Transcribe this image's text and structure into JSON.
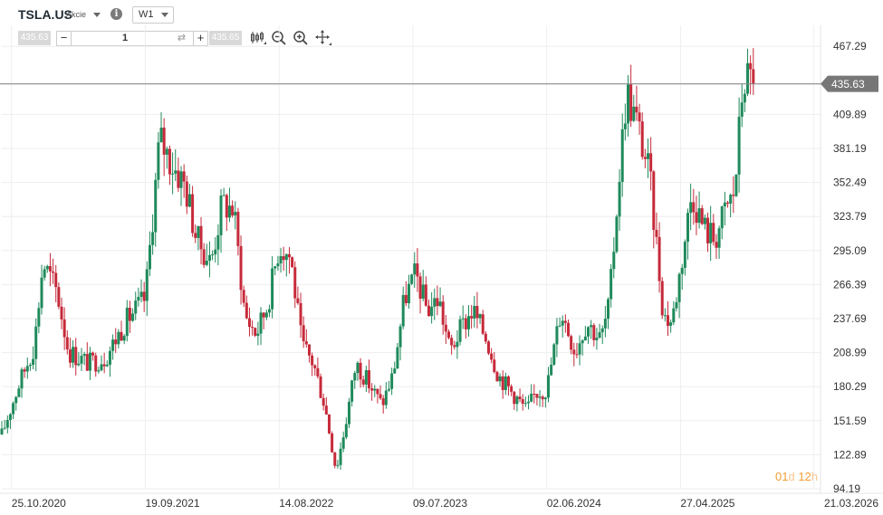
{
  "header": {
    "symbol": "TSLA.US",
    "asset_type": "Akcie",
    "timeframe": "W1"
  },
  "trade_bar": {
    "sell_price": "435.63",
    "quantity": "1",
    "buy_price": "435.65"
  },
  "toolbar": {
    "icons": [
      "candlestick-type-icon",
      "zoom-out-icon",
      "zoom-in-icon",
      "move-icon"
    ]
  },
  "countdown": {
    "days": "01",
    "d_unit": "d",
    "hours": "12",
    "h_unit": "h"
  },
  "colors": {
    "up": "#1f8a5b",
    "down": "#c62a3a",
    "price_line": "#8a8a8a",
    "countdown": "#f39c34"
  },
  "chart_data": {
    "type": "candlestick",
    "title": "",
    "interval": "W1",
    "current_price": 435.63,
    "y_ticks": [
      467.29,
      409.89,
      381.19,
      352.49,
      323.79,
      295.09,
      266.39,
      237.69,
      208.99,
      180.29,
      151.59,
      122.89,
      94.19
    ],
    "y_tick_labels": [
      "467.29",
      "409.89",
      "381.19",
      "352.49",
      "323.79",
      "295.09",
      "266.39",
      "237.69",
      "208.99",
      "180.29",
      "151.59",
      "122.89",
      "94.19"
    ],
    "ylim": [
      94.19,
      485
    ],
    "x_tick_labels": [
      "25.10.2020",
      "19.09.2021",
      "14.08.2022",
      "09.07.2023",
      "02.06.2024",
      "27.04.2025",
      "21.03.2026"
    ],
    "x_ticks": [
      "2020-10-25",
      "2021-09-19",
      "2022-08-14",
      "2023-07-09",
      "2024-06-02",
      "2025-04-27",
      "2026-03-21"
    ],
    "x_range": [
      "2020-10-01",
      "2026-04-04"
    ],
    "close_path": [
      [
        "2020-10-01",
        140
      ],
      [
        "2020-11-15",
        185
      ],
      [
        "2020-12-20",
        215
      ],
      [
        "2021-01-10",
        285
      ],
      [
        "2021-02-14",
        260
      ],
      [
        "2021-03-14",
        210
      ],
      [
        "2021-05-02",
        200
      ],
      [
        "2021-06-13",
        205
      ],
      [
        "2021-08-01",
        235
      ],
      [
        "2021-09-19",
        255
      ],
      [
        "2021-10-24",
        390
      ],
      [
        "2021-11-21",
        370
      ],
      [
        "2021-12-26",
        350
      ],
      [
        "2022-01-23",
        305
      ],
      [
        "2022-02-27",
        285
      ],
      [
        "2022-03-27",
        335
      ],
      [
        "2022-04-24",
        330
      ],
      [
        "2022-05-22",
        240
      ],
      [
        "2022-06-19",
        225
      ],
      [
        "2022-07-17",
        250
      ],
      [
        "2022-08-14",
        300
      ],
      [
        "2022-09-11",
        290
      ],
      [
        "2022-10-09",
        215
      ],
      [
        "2022-11-06",
        200
      ],
      [
        "2022-12-04",
        165
      ],
      [
        "2023-01-01",
        110
      ],
      [
        "2023-01-22",
        145
      ],
      [
        "2023-02-19",
        200
      ],
      [
        "2023-03-19",
        185
      ],
      [
        "2023-04-23",
        165
      ],
      [
        "2023-05-21",
        190
      ],
      [
        "2023-06-18",
        255
      ],
      [
        "2023-07-16",
        275
      ],
      [
        "2023-08-13",
        245
      ],
      [
        "2023-09-10",
        255
      ],
      [
        "2023-10-08",
        210
      ],
      [
        "2023-11-05",
        230
      ],
      [
        "2023-12-03",
        245
      ],
      [
        "2024-01-07",
        220
      ],
      [
        "2024-02-04",
        190
      ],
      [
        "2024-03-10",
        175
      ],
      [
        "2024-04-14",
        160
      ],
      [
        "2024-05-05",
        175
      ],
      [
        "2024-06-02",
        178
      ],
      [
        "2024-07-07",
        245
      ],
      [
        "2024-08-11",
        210
      ],
      [
        "2024-09-08",
        235
      ],
      [
        "2024-10-13",
        220
      ],
      [
        "2024-11-03",
        250
      ],
      [
        "2024-11-24",
        345
      ],
      [
        "2024-12-15",
        430
      ],
      [
        "2025-01-12",
        400
      ],
      [
        "2025-02-09",
        360
      ],
      [
        "2025-03-02",
        290
      ],
      [
        "2025-03-16",
        240
      ],
      [
        "2025-04-06",
        235
      ],
      [
        "2025-04-27",
        280
      ],
      [
        "2025-05-25",
        345
      ],
      [
        "2025-06-22",
        315
      ],
      [
        "2025-07-20",
        305
      ],
      [
        "2025-08-17",
        330
      ],
      [
        "2025-09-07",
        345
      ],
      [
        "2025-09-28",
        440
      ],
      [
        "2025-10-19",
        440
      ],
      [
        "2025-10-26",
        435.63
      ]
    ]
  }
}
